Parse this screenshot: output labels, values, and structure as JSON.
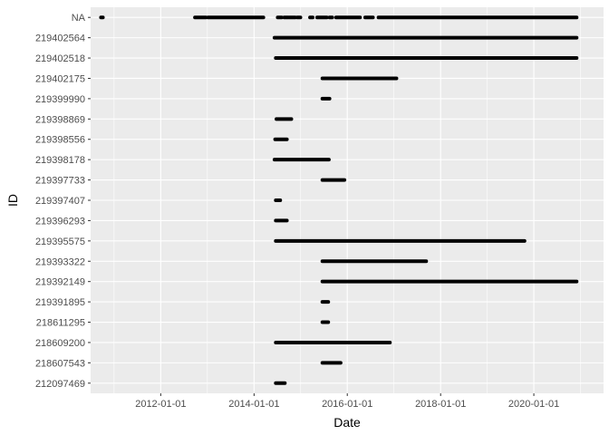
{
  "chart_data": {
    "type": "scatter",
    "xlabel": "Date",
    "ylabel": "ID",
    "x_ticks": [
      "2012-01-01",
      "2014-01-01",
      "2016-01-01",
      "2018-01-01",
      "2020-01-01"
    ],
    "xlim": [
      "2010-07-01",
      "2021-06-30"
    ],
    "categories": [
      "212097469",
      "218607543",
      "218609200",
      "218611295",
      "219391895",
      "219392149",
      "219393322",
      "219395575",
      "219396293",
      "219397407",
      "219397733",
      "219398178",
      "219398556",
      "219398869",
      "219399990",
      "219402175",
      "219402518",
      "219402564",
      "NA"
    ],
    "grid": true,
    "background": "#ebebeb",
    "grid_color": "#ffffff",
    "point_color": "#000000",
    "series": [
      {
        "id": "212097469",
        "segments": [
          [
            "2014-06-20",
            "2014-08-30"
          ]
        ]
      },
      {
        "id": "218607543",
        "segments": [
          [
            "2015-06-20",
            "2015-11-10"
          ]
        ]
      },
      {
        "id": "218609200",
        "segments": [
          [
            "2014-06-20",
            "2016-11-30"
          ]
        ]
      },
      {
        "id": "218611295",
        "segments": [
          [
            "2015-06-20",
            "2015-08-05"
          ]
        ]
      },
      {
        "id": "219391895",
        "segments": [
          [
            "2015-06-20",
            "2015-08-05"
          ]
        ]
      },
      {
        "id": "219392149",
        "segments": [
          [
            "2015-06-20",
            "2020-12-01"
          ]
        ]
      },
      {
        "id": "219393322",
        "segments": [
          [
            "2015-06-20",
            "2017-09-10"
          ]
        ]
      },
      {
        "id": "219395575",
        "segments": [
          [
            "2014-06-20",
            "2019-10-20"
          ]
        ]
      },
      {
        "id": "219396293",
        "segments": [
          [
            "2014-06-20",
            "2014-09-15"
          ]
        ]
      },
      {
        "id": "219397407",
        "segments": [
          [
            "2014-06-20",
            "2014-07-25"
          ]
        ]
      },
      {
        "id": "219397733",
        "segments": [
          [
            "2015-06-20",
            "2015-12-10"
          ]
        ]
      },
      {
        "id": "219398178",
        "segments": [
          [
            "2014-06-10",
            "2015-08-10"
          ]
        ]
      },
      {
        "id": "219398556",
        "segments": [
          [
            "2014-06-15",
            "2014-09-15"
          ]
        ]
      },
      {
        "id": "219398869",
        "segments": [
          [
            "2014-06-25",
            "2014-10-20"
          ]
        ]
      },
      {
        "id": "219399990",
        "segments": [
          [
            "2015-06-20",
            "2015-08-15"
          ]
        ]
      },
      {
        "id": "219402175",
        "segments": [
          [
            "2015-06-20",
            "2017-01-20"
          ]
        ]
      },
      {
        "id": "219402518",
        "segments": [
          [
            "2014-06-20",
            "2020-12-01"
          ]
        ]
      },
      {
        "id": "219402564",
        "segments": [
          [
            "2014-06-10",
            "2020-12-01"
          ]
        ]
      },
      {
        "id": "NA",
        "segments": [
          [
            "2010-09-20",
            "2010-10-05"
          ],
          [
            "2012-09-25",
            "2012-12-20"
          ],
          [
            "2013-01-05",
            "2014-03-15"
          ],
          [
            "2014-07-05",
            "2014-08-05"
          ],
          [
            "2014-08-25",
            "2014-09-25"
          ],
          [
            "2014-10-05",
            "2014-11-20"
          ],
          [
            "2014-12-05",
            "2014-12-30"
          ],
          [
            "2015-03-15",
            "2015-04-05"
          ],
          [
            "2015-05-10",
            "2015-07-25"
          ],
          [
            "2015-08-15",
            "2015-09-05"
          ],
          [
            "2015-10-05",
            "2016-04-10"
          ],
          [
            "2016-05-20",
            "2016-07-20"
          ],
          [
            "2016-09-01",
            "2020-12-01"
          ]
        ]
      }
    ]
  }
}
